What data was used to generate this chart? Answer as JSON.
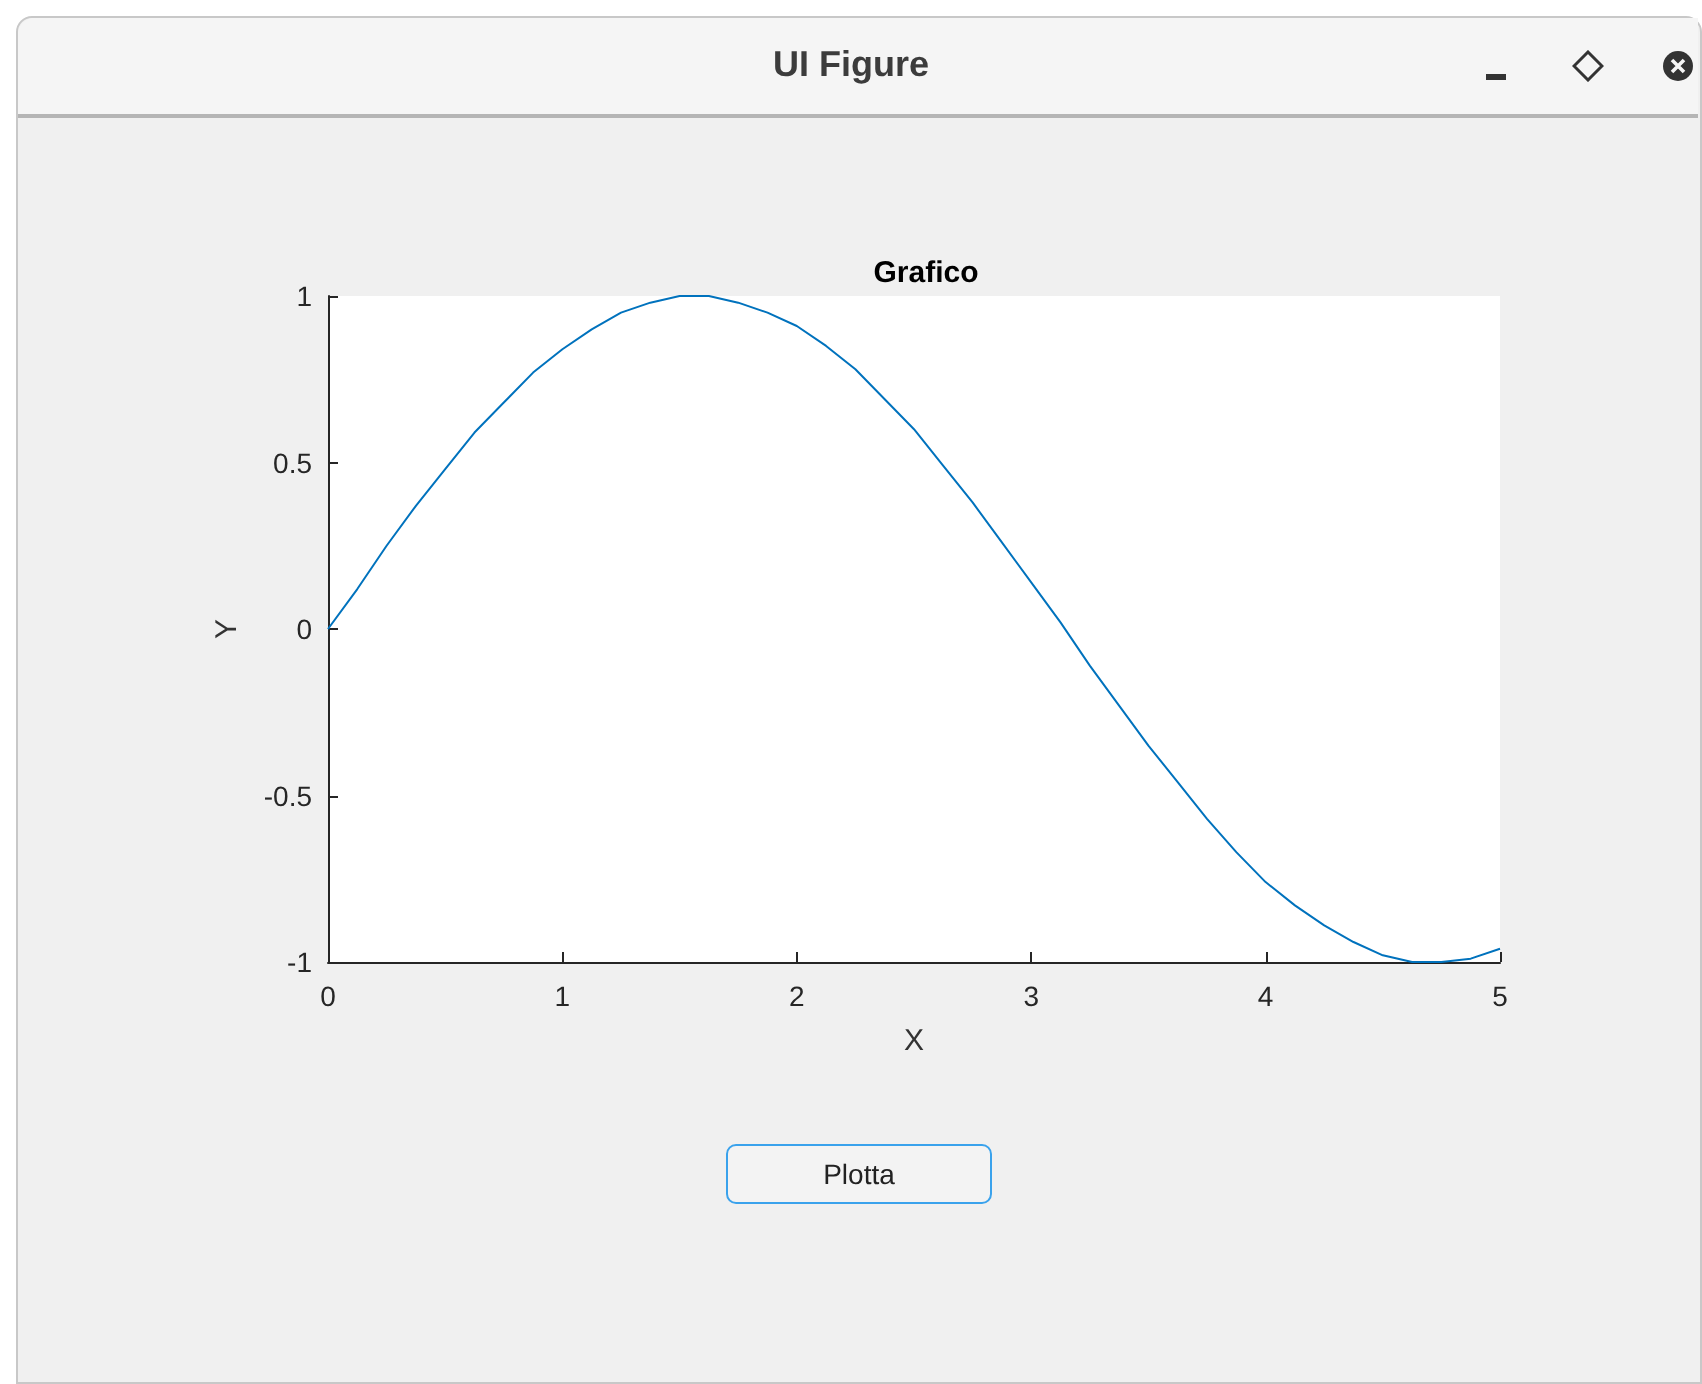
{
  "chart_data": {
    "type": "line",
    "title": "Grafico",
    "xlabel": "X",
    "ylabel": "Y",
    "annotations": [
      "UI Figure",
      "Plotta"
    ],
    "x": [
      0,
      0.125,
      0.25,
      0.375,
      0.5,
      0.625,
      0.75,
      0.875,
      1,
      1.125,
      1.25,
      1.375,
      1.5,
      1.625,
      1.75,
      1.875,
      2,
      2.125,
      2.25,
      2.375,
      2.5,
      2.625,
      2.75,
      2.875,
      3,
      3.125,
      3.25,
      3.375,
      3.5,
      3.625,
      3.75,
      3.875,
      4,
      4.125,
      4.25,
      4.375,
      4.5,
      4.625,
      4.75,
      4.875,
      5
    ],
    "series": [
      {
        "color": "#0072bd",
        "values": [
          0,
          0.12,
          0.25,
          0.37,
          0.48,
          0.59,
          0.68,
          0.77,
          0.84,
          0.9,
          0.95,
          0.98,
          1.0,
          1.0,
          0.98,
          0.95,
          0.91,
          0.85,
          0.78,
          0.69,
          0.6,
          0.49,
          0.38,
          0.26,
          0.14,
          0.02,
          -0.11,
          -0.23,
          -0.35,
          -0.46,
          -0.57,
          -0.67,
          -0.76,
          -0.83,
          -0.89,
          -0.94,
          -0.98,
          -1.0,
          -1.0,
          -0.99,
          -0.96
        ]
      }
    ],
    "xlim": [
      0,
      5
    ],
    "xticks": [
      0,
      1,
      2,
      3,
      4,
      5
    ],
    "ylim": [
      -1,
      1
    ],
    "yticks": [
      -1,
      -0.5,
      0,
      0.5,
      1
    ],
    "grid": false,
    "marker": "none",
    "line_style": "solid"
  }
}
